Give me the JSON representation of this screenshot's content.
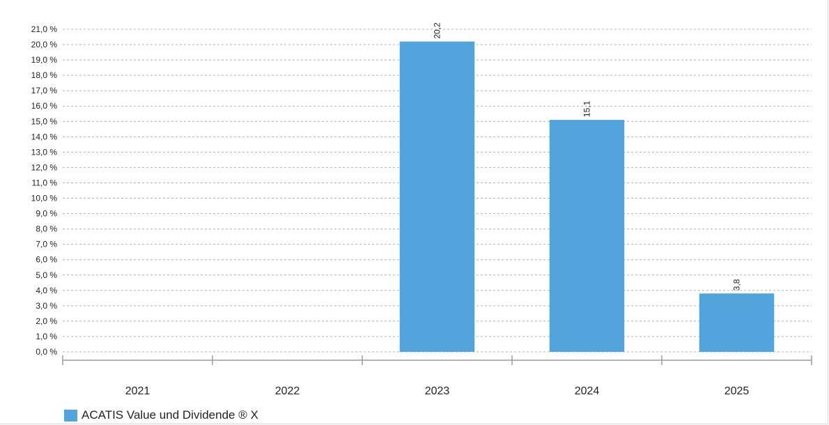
{
  "chart_data": {
    "type": "bar",
    "categories": [
      "2021",
      "2022",
      "2023",
      "2024",
      "2025"
    ],
    "series": [
      {
        "name": "ACATIS Value und Dividende ® X",
        "values": [
          null,
          null,
          20.2,
          15.1,
          3.8
        ],
        "data_labels": [
          "",
          "",
          "20,2",
          "15,1",
          "3,8"
        ]
      }
    ],
    "ylim": [
      0,
      21
    ],
    "ytick_step": 1,
    "ytick_labels": [
      "0,0 %",
      "1,0 %",
      "2,0 %",
      "3,0 %",
      "4,0 %",
      "5,0 %",
      "6,0 %",
      "7,0 %",
      "8,0 %",
      "9,0 %",
      "10,0 %",
      "11,0 %",
      "12,0 %",
      "13,0 %",
      "14,0 %",
      "15,0 %",
      "16,0 %",
      "17,0 %",
      "18,0 %",
      "19,0 %",
      "20,0 %",
      "21,0 %"
    ],
    "grid": true,
    "legend_position": "bottom-left",
    "colors": {
      "bar": "#52a5dc"
    }
  }
}
